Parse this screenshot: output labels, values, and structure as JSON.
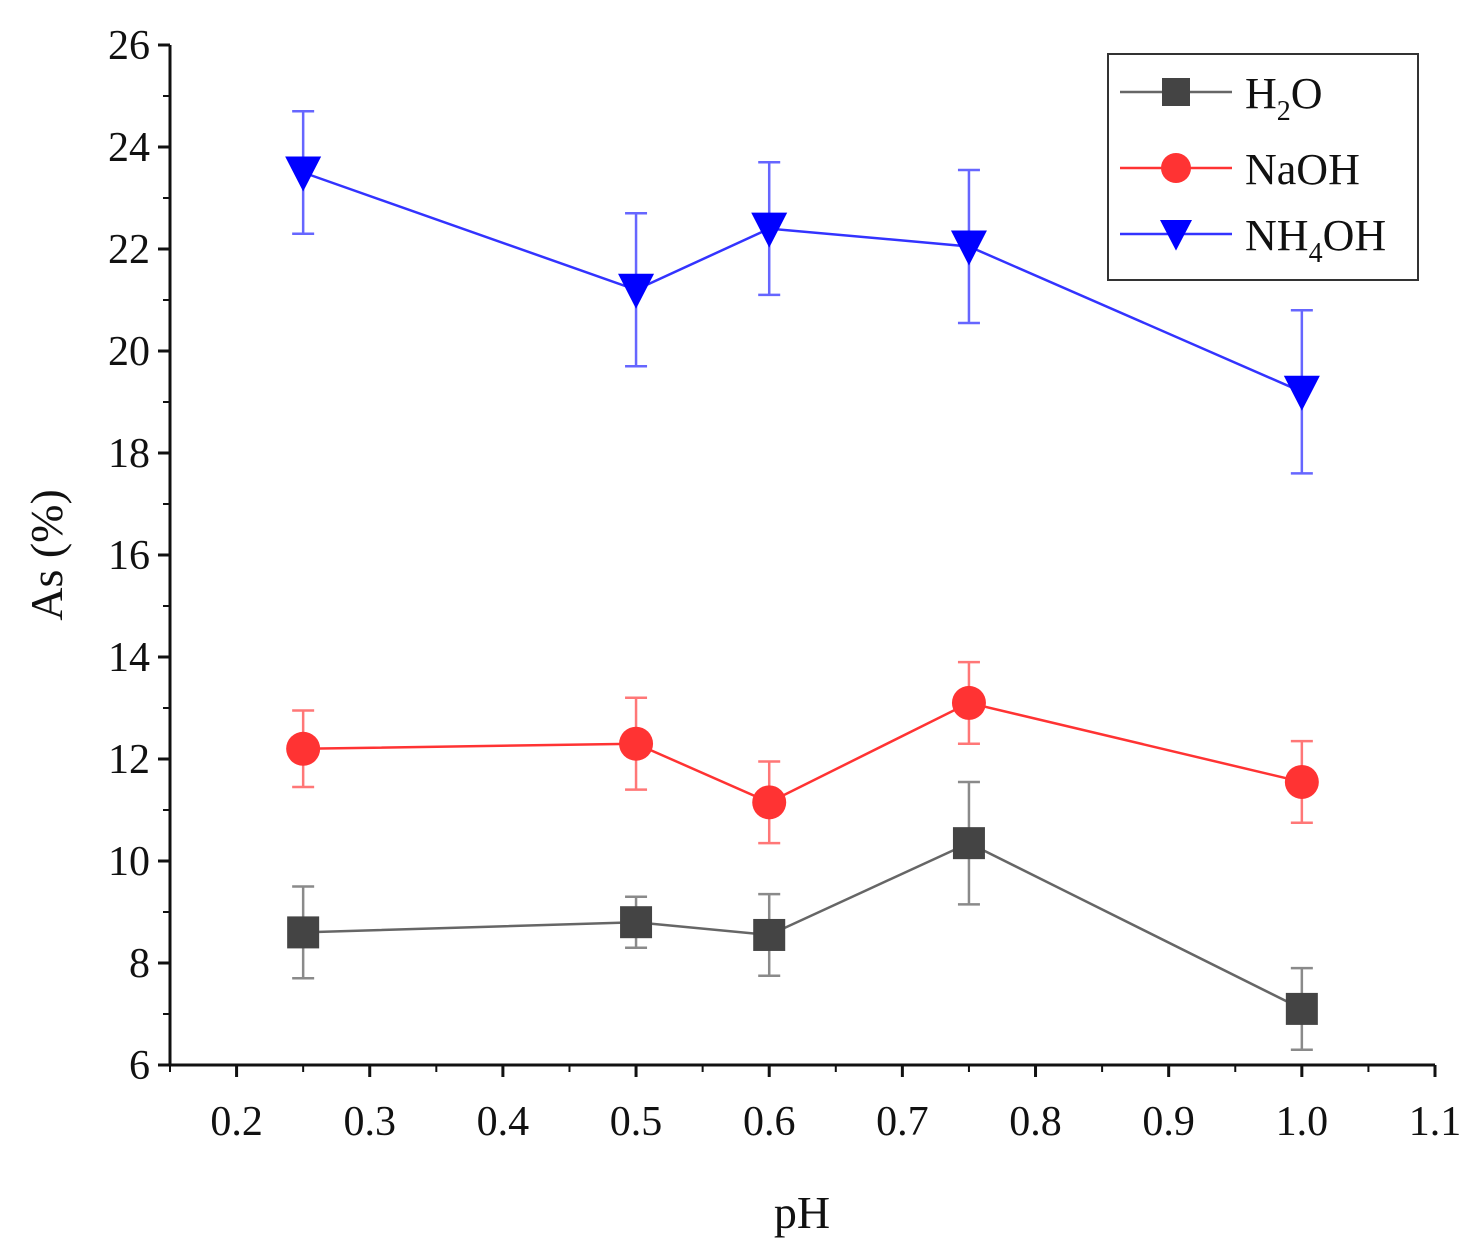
{
  "chart_data": {
    "type": "line",
    "title": "",
    "xlabel": "pH",
    "ylabel": "As (%)",
    "xlim": [
      0.15,
      1.1
    ],
    "ylim": [
      6,
      26
    ],
    "xticks": [
      0.2,
      0.3,
      0.4,
      0.5,
      0.6,
      0.7,
      0.8,
      0.9,
      1.0,
      1.1
    ],
    "xtick_labels": [
      "0.2",
      "0.3",
      "0.4",
      "0.5",
      "0.6",
      "0.7",
      "0.8",
      "0.9",
      "1.0",
      "1.1"
    ],
    "yticks": [
      6,
      8,
      10,
      12,
      14,
      16,
      18,
      20,
      22,
      24,
      26
    ],
    "ytick_labels": [
      "6",
      "8",
      "10",
      "12",
      "14",
      "16",
      "18",
      "20",
      "22",
      "24",
      "26"
    ],
    "legend_position": "top-right",
    "series": [
      {
        "name": "H2O",
        "label_main": "H",
        "label_sub": "2",
        "label_end": "O",
        "color": "#444444",
        "line_color": "#666666",
        "errbar_color": "#8a8a8a",
        "marker": "square",
        "x": [
          0.25,
          0.5,
          0.6,
          0.75,
          1.0
        ],
        "y": [
          8.6,
          8.8,
          8.55,
          10.35,
          7.1
        ],
        "err_low": [
          0.9,
          0.5,
          0.8,
          1.2,
          0.8
        ],
        "err_high": [
          0.9,
          0.5,
          0.8,
          1.2,
          0.8
        ]
      },
      {
        "name": "NaOH",
        "label_main": "NaOH",
        "label_sub": "",
        "label_end": "",
        "color": "#ff3333",
        "line_color": "#ff3333",
        "errbar_color": "#ff7777",
        "marker": "circle",
        "x": [
          0.25,
          0.5,
          0.6,
          0.75,
          1.0
        ],
        "y": [
          12.2,
          12.3,
          11.15,
          13.1,
          11.55
        ],
        "err_low": [
          0.75,
          0.9,
          0.8,
          0.8,
          0.8
        ],
        "err_high": [
          0.75,
          0.9,
          0.8,
          0.8,
          0.8
        ]
      },
      {
        "name": "NH4OH",
        "label_main": "NH",
        "label_sub": "4",
        "label_end": "OH",
        "color": "#0000ff",
        "line_color": "#3333ff",
        "errbar_color": "#6666ff",
        "marker": "triangle-down",
        "x": [
          0.25,
          0.5,
          0.6,
          0.75,
          1.0
        ],
        "y": [
          23.5,
          21.2,
          22.4,
          22.05,
          19.2
        ],
        "err_low": [
          1.2,
          1.5,
          1.3,
          1.5,
          1.6
        ],
        "err_high": [
          1.2,
          1.5,
          1.3,
          1.5,
          1.6
        ]
      }
    ]
  }
}
